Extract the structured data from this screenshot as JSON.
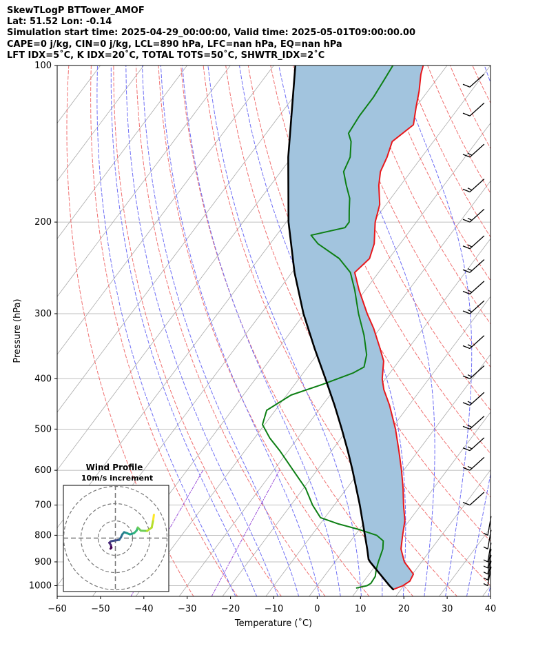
{
  "header": {
    "line1": "SkewTLogP BTTower_AMOF",
    "line2": "Lat: 51.52   Lon: -0.14",
    "line3": "Simulation start time: 2025-04-29_00:00:00, Valid time: 2025-05-01T09:00:00.00",
    "line4": "CAPE=0 j/kg, CIN=0 j/kg, LCL=890 hPa, LFC=nan hPa, EQ=nan hPa",
    "line5": "LFT IDX=5˚C, K IDX=20˚C, TOTAL TOTS=50˚C, SHWTR_IDX=2˚C"
  },
  "chart_data": [
    {
      "type": "line",
      "subtype": "skew-t log-p",
      "xlabel": "Temperature (˚C)",
      "ylabel": "Pressure (hPa)",
      "xlim": [
        -60,
        40
      ],
      "ylim": [
        1050,
        100
      ],
      "x_ticks": [
        -60,
        -50,
        -40,
        -30,
        -20,
        -10,
        0,
        10,
        20,
        30,
        40
      ],
      "y_ticks": [
        1000,
        900,
        800,
        700,
        600,
        500,
        400,
        300,
        200,
        100
      ],
      "colors": {
        "temperature": "#e8171b",
        "dewpoint": "#0d7f14",
        "parcel": "#000000",
        "shade": "#a2c4de",
        "dry_adiabat": "#f07070",
        "moist_adiabat": "#6f6ff5",
        "mixing_ratio": "#9b4fd8",
        "isotherm": "#aaaaaa"
      },
      "series": [
        {
          "name": "Temperature",
          "points": [
            {
              "p": 1017,
              "t": 18.2
            },
            {
              "p": 1000,
              "t": 19.8
            },
            {
              "p": 980,
              "t": 20.6
            },
            {
              "p": 950,
              "t": 20.2
            },
            {
              "p": 900,
              "t": 16.0
            },
            {
              "p": 850,
              "t": 13.0
            },
            {
              "p": 800,
              "t": 11.0
            },
            {
              "p": 750,
              "t": 9.0
            },
            {
              "p": 700,
              "t": 6.0
            },
            {
              "p": 650,
              "t": 3.0
            },
            {
              "p": 600,
              "t": -0.5
            },
            {
              "p": 550,
              "t": -4.5
            },
            {
              "p": 500,
              "t": -9.0
            },
            {
              "p": 450,
              "t": -14.5
            },
            {
              "p": 420,
              "t": -18.5
            },
            {
              "p": 400,
              "t": -20.8
            },
            {
              "p": 370,
              "t": -23.5
            },
            {
              "p": 350,
              "t": -26.5
            },
            {
              "p": 320,
              "t": -31.5
            },
            {
              "p": 300,
              "t": -35.5
            },
            {
              "p": 270,
              "t": -41.5
            },
            {
              "p": 250,
              "t": -45.5
            },
            {
              "p": 235,
              "t": -44.5
            },
            {
              "p": 220,
              "t": -46.0
            },
            {
              "p": 200,
              "t": -49.5
            },
            {
              "p": 185,
              "t": -51.5
            },
            {
              "p": 170,
              "t": -55.0
            },
            {
              "p": 160,
              "t": -57.0
            },
            {
              "p": 150,
              "t": -58.0
            },
            {
              "p": 140,
              "t": -59.5
            },
            {
              "p": 130,
              "t": -57.5
            },
            {
              "p": 120,
              "t": -60.0
            },
            {
              "p": 112,
              "t": -62.0
            },
            {
              "p": 104,
              "t": -64.5
            },
            {
              "p": 100,
              "t": -65.5
            }
          ]
        },
        {
          "name": "Dewpoint",
          "points": [
            {
              "p": 1010,
              "t": 9.5
            },
            {
              "p": 1000,
              "t": 11.5
            },
            {
              "p": 990,
              "t": 12.0
            },
            {
              "p": 960,
              "t": 11.8
            },
            {
              "p": 930,
              "t": 10.8
            },
            {
              "p": 900,
              "t": 10.0
            },
            {
              "p": 850,
              "t": 8.8
            },
            {
              "p": 820,
              "t": 7.5
            },
            {
              "p": 800,
              "t": 5.0
            },
            {
              "p": 780,
              "t": 0.0
            },
            {
              "p": 760,
              "t": -6.0
            },
            {
              "p": 740,
              "t": -11.0
            },
            {
              "p": 700,
              "t": -15.0
            },
            {
              "p": 650,
              "t": -19.5
            },
            {
              "p": 600,
              "t": -25.5
            },
            {
              "p": 550,
              "t": -32.0
            },
            {
              "p": 520,
              "t": -36.5
            },
            {
              "p": 490,
              "t": -40.5
            },
            {
              "p": 460,
              "t": -42.0
            },
            {
              "p": 430,
              "t": -39.0
            },
            {
              "p": 410,
              "t": -33.5
            },
            {
              "p": 390,
              "t": -28.5
            },
            {
              "p": 380,
              "t": -27.0
            },
            {
              "p": 360,
              "t": -28.5
            },
            {
              "p": 330,
              "t": -32.5
            },
            {
              "p": 300,
              "t": -37.5
            },
            {
              "p": 270,
              "t": -42.5
            },
            {
              "p": 250,
              "t": -46.5
            },
            {
              "p": 235,
              "t": -51.5
            },
            {
              "p": 220,
              "t": -59.0
            },
            {
              "p": 212,
              "t": -62.0
            },
            {
              "p": 205,
              "t": -55.5
            },
            {
              "p": 200,
              "t": -55.5
            },
            {
              "p": 190,
              "t": -57.5
            },
            {
              "p": 180,
              "t": -59.5
            },
            {
              "p": 170,
              "t": -62.5
            },
            {
              "p": 160,
              "t": -65.5
            },
            {
              "p": 150,
              "t": -66.5
            },
            {
              "p": 140,
              "t": -69.0
            },
            {
              "p": 135,
              "t": -71.0
            },
            {
              "p": 125,
              "t": -71.5
            },
            {
              "p": 115,
              "t": -71.5
            },
            {
              "p": 107,
              "t": -72.0
            },
            {
              "p": 100,
              "t": -72.5
            }
          ]
        },
        {
          "name": "Parcel profile",
          "points": [
            {
              "p": 1017,
              "t": 18.2
            },
            {
              "p": 1000,
              "t": 16.7
            },
            {
              "p": 950,
              "t": 12.5
            },
            {
              "p": 900,
              "t": 8.1
            },
            {
              "p": 890,
              "t": 7.3
            },
            {
              "p": 850,
              "t": 5.2
            },
            {
              "p": 800,
              "t": 2.3
            },
            {
              "p": 750,
              "t": -0.8
            },
            {
              "p": 700,
              "t": -4.1
            },
            {
              "p": 650,
              "t": -7.8
            },
            {
              "p": 600,
              "t": -11.8
            },
            {
              "p": 550,
              "t": -16.3
            },
            {
              "p": 500,
              "t": -21.4
            },
            {
              "p": 450,
              "t": -27.2
            },
            {
              "p": 400,
              "t": -33.9
            },
            {
              "p": 350,
              "t": -41.6
            },
            {
              "p": 300,
              "t": -50.2
            },
            {
              "p": 250,
              "t": -59.4
            },
            {
              "p": 200,
              "t": -69.5
            },
            {
              "p": 150,
              "t": -80.8
            },
            {
              "p": 100,
              "t": -95.0
            }
          ]
        }
      ],
      "wind_barbs": [
        {
          "p": 1000,
          "speed_kt": 5
        },
        {
          "p": 975,
          "speed_kt": 5
        },
        {
          "p": 950,
          "speed_kt": 5
        },
        {
          "p": 925,
          "speed_kt": 5
        },
        {
          "p": 900,
          "speed_kt": 5
        },
        {
          "p": 850,
          "speed_kt": 5
        },
        {
          "p": 800,
          "speed_kt": 5
        },
        {
          "p": 700,
          "speed_kt": 10
        },
        {
          "p": 600,
          "speed_kt": 15
        },
        {
          "p": 550,
          "speed_kt": 15
        },
        {
          "p": 500,
          "speed_kt": 15
        },
        {
          "p": 450,
          "speed_kt": 15
        },
        {
          "p": 400,
          "speed_kt": 15
        },
        {
          "p": 350,
          "speed_kt": 15
        },
        {
          "p": 300,
          "speed_kt": 15
        },
        {
          "p": 275,
          "speed_kt": 15
        },
        {
          "p": 250,
          "speed_kt": 15
        },
        {
          "p": 225,
          "speed_kt": 15
        },
        {
          "p": 200,
          "speed_kt": 15
        },
        {
          "p": 175,
          "speed_kt": 15
        },
        {
          "p": 150,
          "speed_kt": 15
        },
        {
          "p": 125,
          "speed_kt": 10
        },
        {
          "p": 110,
          "speed_kt": 10
        }
      ],
      "hodograph": {
        "title": "Wind Profile",
        "subtitle": "10m/s increment",
        "ring_increment_ms": 10,
        "rings": 3,
        "points": [
          {
            "u": 0.2,
            "v": 0.6
          },
          {
            "u": 0.5,
            "v": 0.9
          },
          {
            "u": 0.3,
            "v": 1.8
          },
          {
            "u": -0.2,
            "v": 2.5
          },
          {
            "u": 0.4,
            "v": 3.0
          },
          {
            "u": 1.5,
            "v": 3.2
          },
          {
            "u": 3.0,
            "v": 3.4
          },
          {
            "u": 3.6,
            "v": 4.3
          },
          {
            "u": 4.0,
            "v": 5.2
          },
          {
            "u": 4.6,
            "v": 5.9
          },
          {
            "u": 5.5,
            "v": 5.6
          },
          {
            "u": 6.5,
            "v": 5.2
          },
          {
            "u": 7.8,
            "v": 5.6
          },
          {
            "u": 8.6,
            "v": 6.4
          },
          {
            "u": 9.0,
            "v": 7.4
          },
          {
            "u": 10.0,
            "v": 6.4
          },
          {
            "u": 12.0,
            "v": 6.3
          },
          {
            "u": 13.5,
            "v": 7.4
          },
          {
            "u": 14.0,
            "v": 10.0
          },
          {
            "u": 14.2,
            "v": 11.5
          }
        ]
      }
    }
  ]
}
